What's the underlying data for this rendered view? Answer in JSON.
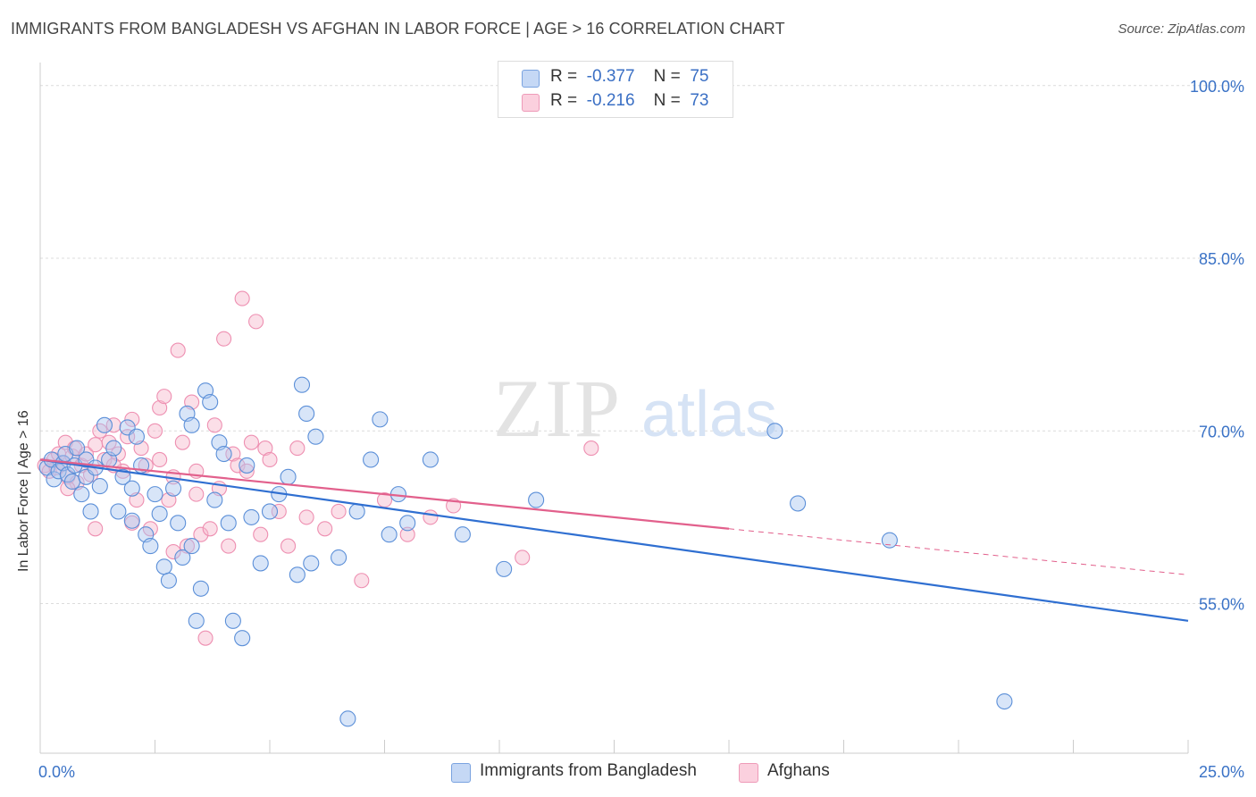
{
  "title": "IMMIGRANTS FROM BANGLADESH VS AFGHAN IN LABOR FORCE | AGE > 16 CORRELATION CHART",
  "source": "Source: ZipAtlas.com",
  "watermark": {
    "part1": "ZIP",
    "part2": "atlas"
  },
  "legend": {
    "rows": [
      {
        "r_label": "R =",
        "r_value": "-0.377",
        "n_label": "N =",
        "n_value": "75",
        "color": "#a9c6f0"
      },
      {
        "r_label": "R =",
        "r_value": "-0.216",
        "n_label": "N =",
        "n_value": "73",
        "color": "#f7b8cc"
      }
    ]
  },
  "bottom_legend": [
    {
      "label": "Immigrants from Bangladesh",
      "color": "#a9c6f0"
    },
    {
      "label": "Afghans",
      "color": "#f7b8cc"
    }
  ],
  "chart_data": {
    "type": "scatter",
    "ylabel": "In Labor Force | Age > 16",
    "x_tick_labels": [
      "0.0%",
      "25.0%"
    ],
    "y_tick_labels": [
      "100.0%",
      "85.0%",
      "70.0%",
      "55.0%"
    ],
    "y_ticks": [
      100,
      85,
      70,
      55
    ],
    "xlim": [
      0,
      25
    ],
    "ylim": [
      42,
      102
    ],
    "grid": true,
    "colors": {
      "bangladesh": "#5b8fd8",
      "bangladesh_line": "#2f6fd1",
      "afghans": "#ee8fb1",
      "afghans_line": "#e2608c",
      "axis_text": "#3a72c6"
    },
    "series": [
      {
        "name": "Immigrants from Bangladesh",
        "r": -0.377,
        "n": 75,
        "trend": {
          "x": [
            0,
            25
          ],
          "y": [
            67.5,
            53.5
          ]
        },
        "points": [
          [
            0.15,
            66.8
          ],
          [
            0.25,
            67.5
          ],
          [
            0.3,
            65.8
          ],
          [
            0.4,
            66.5
          ],
          [
            0.5,
            67.2
          ],
          [
            0.55,
            68.0
          ],
          [
            0.6,
            66.2
          ],
          [
            0.7,
            65.6
          ],
          [
            0.75,
            67.0
          ],
          [
            0.8,
            68.5
          ],
          [
            0.9,
            64.5
          ],
          [
            1.0,
            66.0
          ],
          [
            1.0,
            67.5
          ],
          [
            1.1,
            63.0
          ],
          [
            1.2,
            66.8
          ],
          [
            1.3,
            65.2
          ],
          [
            1.4,
            70.5
          ],
          [
            1.5,
            67.5
          ],
          [
            1.6,
            68.5
          ],
          [
            1.7,
            63.0
          ],
          [
            1.8,
            66.0
          ],
          [
            1.9,
            70.3
          ],
          [
            2.0,
            65.0
          ],
          [
            2.0,
            62.2
          ],
          [
            2.1,
            69.5
          ],
          [
            2.2,
            67.0
          ],
          [
            2.3,
            61.0
          ],
          [
            2.4,
            60.0
          ],
          [
            2.5,
            64.5
          ],
          [
            2.6,
            62.8
          ],
          [
            2.7,
            58.2
          ],
          [
            2.8,
            57.0
          ],
          [
            2.9,
            65.0
          ],
          [
            3.0,
            62.0
          ],
          [
            3.1,
            59.0
          ],
          [
            3.2,
            71.5
          ],
          [
            3.3,
            70.5
          ],
          [
            3.3,
            60.0
          ],
          [
            3.4,
            53.5
          ],
          [
            3.5,
            56.3
          ],
          [
            3.6,
            73.5
          ],
          [
            3.7,
            72.5
          ],
          [
            3.8,
            64.0
          ],
          [
            3.9,
            69.0
          ],
          [
            4.0,
            68.0
          ],
          [
            4.1,
            62.0
          ],
          [
            4.2,
            53.5
          ],
          [
            4.4,
            52.0
          ],
          [
            4.5,
            67.0
          ],
          [
            4.6,
            62.5
          ],
          [
            4.8,
            58.5
          ],
          [
            5.0,
            63.0
          ],
          [
            5.2,
            64.5
          ],
          [
            5.4,
            66.0
          ],
          [
            5.6,
            57.5
          ],
          [
            5.7,
            74.0
          ],
          [
            5.8,
            71.5
          ],
          [
            5.9,
            58.5
          ],
          [
            6.0,
            69.5
          ],
          [
            6.5,
            59.0
          ],
          [
            6.7,
            45.0
          ],
          [
            6.9,
            63.0
          ],
          [
            7.2,
            67.5
          ],
          [
            7.4,
            71.0
          ],
          [
            7.6,
            61.0
          ],
          [
            7.8,
            64.5
          ],
          [
            8.0,
            62.0
          ],
          [
            8.5,
            67.5
          ],
          [
            9.2,
            61.0
          ],
          [
            10.1,
            58.0
          ],
          [
            10.8,
            64.0
          ],
          [
            16.0,
            70.0
          ],
          [
            16.5,
            63.7
          ],
          [
            18.5,
            60.5
          ],
          [
            21.0,
            46.5
          ]
        ]
      },
      {
        "name": "Afghans",
        "r": -0.216,
        "n": 73,
        "trend": {
          "x": [
            0,
            15
          ],
          "y": [
            67.5,
            61.5
          ]
        },
        "trend_extension": {
          "x": [
            15,
            25
          ],
          "y": [
            61.5,
            57.5
          ]
        },
        "points": [
          [
            0.1,
            67.0
          ],
          [
            0.2,
            66.5
          ],
          [
            0.3,
            67.5
          ],
          [
            0.35,
            66.8
          ],
          [
            0.4,
            68.0
          ],
          [
            0.5,
            67.2
          ],
          [
            0.55,
            69.0
          ],
          [
            0.6,
            66.0
          ],
          [
            0.7,
            67.8
          ],
          [
            0.75,
            68.5
          ],
          [
            0.8,
            65.5
          ],
          [
            0.9,
            67.0
          ],
          [
            1.0,
            68.0
          ],
          [
            1.1,
            66.2
          ],
          [
            1.2,
            68.8
          ],
          [
            1.3,
            70.0
          ],
          [
            1.4,
            67.5
          ],
          [
            1.5,
            69.0
          ],
          [
            1.6,
            70.5
          ],
          [
            1.7,
            68.0
          ],
          [
            1.8,
            66.5
          ],
          [
            1.9,
            69.5
          ],
          [
            2.0,
            71.0
          ],
          [
            2.0,
            62.0
          ],
          [
            2.1,
            64.0
          ],
          [
            2.2,
            68.5
          ],
          [
            2.3,
            67.0
          ],
          [
            2.4,
            61.5
          ],
          [
            2.5,
            70.0
          ],
          [
            2.6,
            72.0
          ],
          [
            2.6,
            67.5
          ],
          [
            2.7,
            73.0
          ],
          [
            2.8,
            64.0
          ],
          [
            2.9,
            59.5
          ],
          [
            3.0,
            77.0
          ],
          [
            3.1,
            69.0
          ],
          [
            3.2,
            60.0
          ],
          [
            3.3,
            72.5
          ],
          [
            3.4,
            66.5
          ],
          [
            3.5,
            61.0
          ],
          [
            3.6,
            52.0
          ],
          [
            3.7,
            61.5
          ],
          [
            3.8,
            70.5
          ],
          [
            3.9,
            65.0
          ],
          [
            4.0,
            78.0
          ],
          [
            4.1,
            60.0
          ],
          [
            4.2,
            68.0
          ],
          [
            4.3,
            67.0
          ],
          [
            4.4,
            81.5
          ],
          [
            4.5,
            66.5
          ],
          [
            4.6,
            69.0
          ],
          [
            4.7,
            79.5
          ],
          [
            4.8,
            61.0
          ],
          [
            4.9,
            68.5
          ],
          [
            5.0,
            67.5
          ],
          [
            5.2,
            63.0
          ],
          [
            5.4,
            60.0
          ],
          [
            5.6,
            68.5
          ],
          [
            5.8,
            62.5
          ],
          [
            6.2,
            61.5
          ],
          [
            6.5,
            63.0
          ],
          [
            7.0,
            57.0
          ],
          [
            7.5,
            64.0
          ],
          [
            8.0,
            61.0
          ],
          [
            8.5,
            62.5
          ],
          [
            9.0,
            63.5
          ],
          [
            10.5,
            59.0
          ],
          [
            12.0,
            68.5
          ],
          [
            1.2,
            61.5
          ],
          [
            1.6,
            67.0
          ],
          [
            2.9,
            66.0
          ],
          [
            3.4,
            64.5
          ],
          [
            0.6,
            65.0
          ]
        ]
      }
    ]
  }
}
